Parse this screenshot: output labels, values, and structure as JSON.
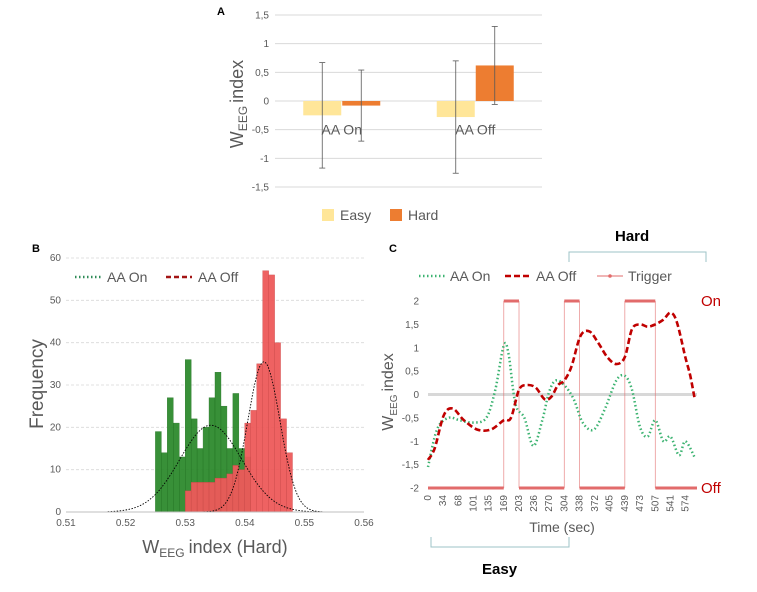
{
  "chart_data": [
    {
      "panel": "A",
      "type": "bar",
      "categories": [
        "AA On",
        "AA Off"
      ],
      "series": [
        {
          "name": "Easy",
          "values": [
            -0.25,
            -0.28
          ],
          "errors": [
            0.92,
            0.98
          ],
          "color": "#ffe699"
        },
        {
          "name": "Hard",
          "values": [
            -0.08,
            0.62
          ],
          "errors": [
            0.62,
            0.68
          ],
          "color": "#ed7d31"
        }
      ],
      "yticks": [
        "1,5",
        "1",
        "0,5",
        "0",
        "-0,5",
        "-1",
        "-1,5"
      ],
      "ylim": [
        -1.5,
        1.5
      ],
      "ylabel": "index",
      "ylabel_main": "W",
      "ylabel_sub": "EEG",
      "grid": true,
      "legend_position": "bottom"
    },
    {
      "panel": "B",
      "type": "bar",
      "subtype": "histogram",
      "xticks": [
        "0.51",
        "0.52",
        "0.53",
        "0.54",
        "0.55",
        "0.56"
      ],
      "yticks": [
        "60",
        "50",
        "40",
        "30",
        "20",
        "10",
        "0"
      ],
      "xlim": [
        0.51,
        0.56
      ],
      "ylim": [
        0,
        60
      ],
      "ylabel": "Frequency",
      "xlabel_main": "W",
      "xlabel_sub": "EEG",
      "xlabel_rest": "index (Hard)",
      "bin_width": 0.001,
      "series": [
        {
          "name": "AA On",
          "color": "#2e8b2e",
          "line_color": "#2e8b57",
          "bin_start": [
            0.525,
            0.526,
            0.527,
            0.528,
            0.529,
            0.53,
            0.531,
            0.532,
            0.533,
            0.534,
            0.535,
            0.536,
            0.537,
            0.538,
            0.539,
            0.54
          ],
          "counts": [
            19,
            14,
            27,
            21,
            13,
            36,
            22,
            15,
            20,
            27,
            33,
            25,
            15,
            28,
            15,
            13
          ],
          "fit_mean": 0.5343,
          "fit_sd": 0.0052,
          "fit_peak": 20.5
        },
        {
          "name": "AA Off",
          "color": "#ee5a5a",
          "line_color": "#a31515",
          "bin_start": [
            0.53,
            0.531,
            0.532,
            0.533,
            0.534,
            0.535,
            0.536,
            0.537,
            0.538,
            0.539,
            0.54,
            0.541,
            0.542,
            0.543,
            0.544,
            0.545,
            0.546,
            0.547
          ],
          "counts": [
            5,
            7,
            7,
            7,
            7,
            8,
            8,
            9,
            11,
            10,
            21,
            24,
            35,
            57,
            56,
            40,
            22,
            14
          ],
          "fit_mean": 0.5432,
          "fit_sd": 0.0027,
          "fit_peak": 35.5
        }
      ],
      "legend_position": "top"
    },
    {
      "panel": "C",
      "type": "line",
      "xlabel": "Time (sec)",
      "ylabel": "index",
      "ylabel_main": "W",
      "ylabel_sub": "EEG",
      "x_tick_labels": [
        "0",
        "34",
        "68",
        "101",
        "135",
        "169",
        "203",
        "236",
        "270",
        "304",
        "338",
        "372",
        "405",
        "439",
        "473",
        "507",
        "541",
        "574"
      ],
      "yticks": [
        "2",
        "1,5",
        "1",
        "0,5",
        "0",
        "-0,5",
        "-1",
        "-1,5",
        "-2"
      ],
      "ylim": [
        -2,
        2
      ],
      "xlim": [
        0,
        600
      ],
      "series": [
        {
          "name": "AA On",
          "color": "#3cb371",
          "style": "dotted",
          "x": [
            0,
            20,
            45,
            70,
            100,
            130,
            150,
            169,
            180,
            195,
            215,
            235,
            255,
            270,
            285,
            304,
            325,
            345,
            370,
            395,
            420,
            439,
            455,
            473,
            490,
            507,
            525,
            541,
            560,
            574,
            595
          ],
          "y": [
            -1.55,
            -0.75,
            -0.5,
            -0.55,
            -0.6,
            -0.5,
            0.1,
            1.05,
            0.85,
            -0.2,
            -0.5,
            -1.1,
            -0.55,
            0.05,
            0.3,
            0.2,
            -0.1,
            -0.6,
            -0.75,
            -0.3,
            0.3,
            0.4,
            0.1,
            -0.7,
            -0.9,
            -0.55,
            -1.0,
            -0.9,
            -1.3,
            -1.0,
            -1.35
          ]
        },
        {
          "name": "AA Off",
          "color": "#c00000",
          "style": "dashed",
          "x": [
            0,
            15,
            35,
            55,
            80,
            110,
            140,
            169,
            185,
            203,
            220,
            240,
            260,
            275,
            290,
            304,
            320,
            340,
            360,
            380,
            400,
            420,
            439,
            455,
            473,
            490,
            507,
            525,
            541,
            555,
            574,
            585,
            595
          ],
          "y": [
            -1.4,
            -1.15,
            -0.45,
            -0.3,
            -0.55,
            -0.75,
            -0.75,
            -0.55,
            -0.5,
            0.1,
            0.2,
            0.15,
            -0.1,
            -0.05,
            0.2,
            0.3,
            0.6,
            1.25,
            1.35,
            1.1,
            0.8,
            0.65,
            0.8,
            1.4,
            1.5,
            1.45,
            1.5,
            1.6,
            1.75,
            1.55,
            0.8,
            0.4,
            -0.1
          ]
        },
        {
          "name": "Trigger",
          "color": "#e26b6b",
          "style": "solid",
          "x": [
            0,
            169,
            169,
            203,
            203,
            304,
            304,
            338,
            338,
            439,
            439,
            507,
            507,
            600
          ],
          "y": [
            -2,
            -2,
            2,
            2,
            -2,
            -2,
            2,
            2,
            -2,
            -2,
            2,
            2,
            -2,
            -2
          ]
        }
      ],
      "baseline_color": "#bfbfbf",
      "annotations": {
        "on_label": "On",
        "off_label": "Off",
        "hard_label": "Hard",
        "easy_label": "Easy"
      },
      "legend_position": "top"
    }
  ],
  "labels": {
    "panel_a": "A",
    "panel_b": "B",
    "panel_c": "C"
  }
}
